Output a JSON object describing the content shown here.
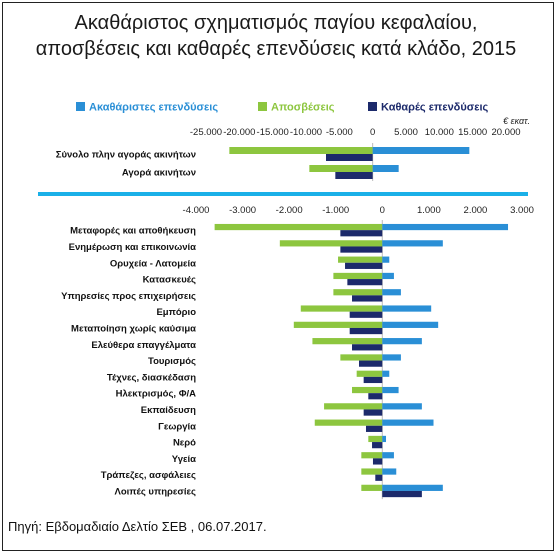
{
  "title_line1": "Ακαθάριστος σχηματισμός παγίου κεφαλαίου,",
  "title_line2": "αποσβέσεις και καθαρές επενδύσεις κατά κλάδο, 2015",
  "source": "Πηγή: Εβδομαδιαίο Δελτίο ΣΕΒ , 06.07.2017.",
  "unit": "€ εκατ.",
  "colors": {
    "gross": "#2a8fd6",
    "depreciation": "#8dc63f",
    "net": "#1c2a6b",
    "separator": "#1ab0e8"
  },
  "chart_data": [
    {
      "type": "bar",
      "orientation": "horizontal",
      "grid": false,
      "legend_position": "top",
      "series": [
        {
          "name": "Ακαθάριστες επενδύσεις",
          "color": "#2a8fd6"
        },
        {
          "name": "Αποσβέσεις",
          "color": "#8dc63f"
        },
        {
          "name": "Καθαρές επενδύσεις",
          "color": "#1c2a6b"
        }
      ],
      "xlim": [
        -25000,
        20000
      ],
      "ticks": [
        "-25.000",
        "-20.000",
        "-15.000",
        "-10.000",
        "-5.000",
        "0",
        "5.000",
        "10.000",
        "15.000",
        "20.000"
      ],
      "tick_values": [
        -25000,
        -20000,
        -15000,
        -10000,
        -5000,
        0,
        5000,
        10000,
        15000,
        20000
      ],
      "categories": [
        "Σύνολο πλην αγοράς ακινήτων",
        "Αγορά ακινήτων"
      ],
      "values": {
        "gross": [
          14500,
          3900
        ],
        "depreciation": [
          -21500,
          -9500
        ],
        "net": [
          -7000,
          -5600
        ]
      }
    },
    {
      "type": "bar",
      "orientation": "horizontal",
      "grid": false,
      "xlim": [
        -4000,
        3000
      ],
      "ticks": [
        "-4.000",
        "-3.000",
        "-2.000",
        "-1.000",
        "0",
        "1.000",
        "2.000",
        "3.000"
      ],
      "tick_values": [
        -4000,
        -3000,
        -2000,
        -1000,
        0,
        1000,
        2000,
        3000
      ],
      "categories": [
        "Μεταφορές και αποθήκευση",
        "Ενημέρωση και επικοινωνία",
        "Ορυχεία - Λατομεία",
        "Κατασκευές",
        "Υπηρεσίες προς επιχειρήσεις",
        "Εμπόριο",
        "Μεταποίηση χωρίς καύσιμα",
        "Ελεύθερα επαγγέλματα",
        "Τουρισμός",
        "Τέχνες, διασκέδαση",
        "Ηλεκτρισμός, Φ/Α",
        "Εκπαίδευση",
        "Γεωργία",
        "Νερό",
        "Υγεία",
        "Τράπεζες, ασφάλειες",
        "Λοιπές υπηρεσίες"
      ],
      "values": {
        "gross": [
          2700,
          1300,
          150,
          250,
          400,
          1050,
          1200,
          850,
          400,
          150,
          350,
          850,
          1100,
          80,
          250,
          300,
          1300
        ],
        "depreciation": [
          -3600,
          -2200,
          -950,
          -1050,
          -1050,
          -1750,
          -1900,
          -1500,
          -900,
          -550,
          -650,
          -1250,
          -1450,
          -300,
          -450,
          -450,
          -450
        ],
        "net": [
          -900,
          -900,
          -800,
          -750,
          -650,
          -700,
          -700,
          -650,
          -500,
          -400,
          -300,
          -400,
          -350,
          -220,
          -200,
          -150,
          850
        ]
      }
    }
  ]
}
